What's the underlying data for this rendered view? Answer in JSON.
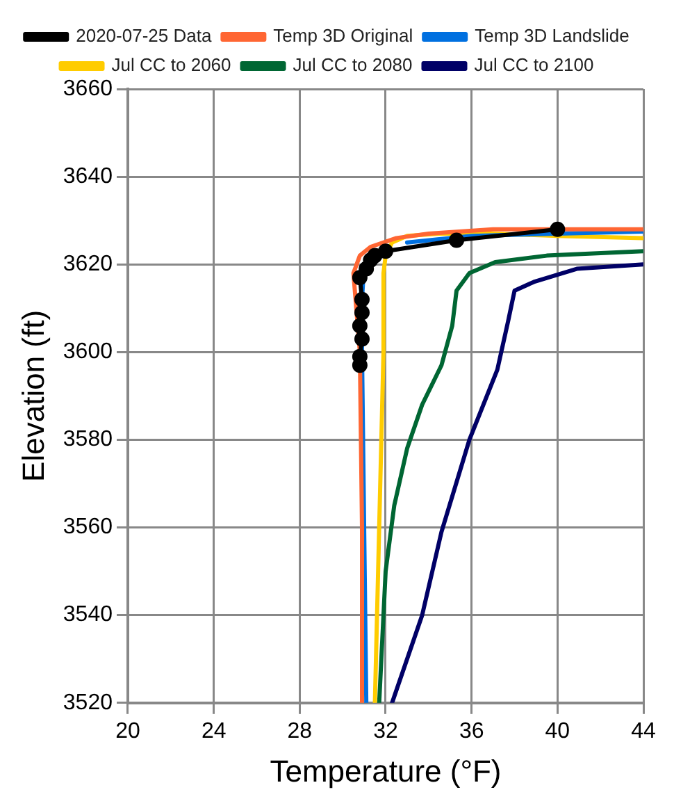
{
  "chart_data": {
    "type": "line",
    "xlabel": "Temperature (°F)",
    "ylabel": "Elevation (ft)",
    "xlim": [
      20,
      44
    ],
    "xticks": [
      20,
      24,
      28,
      32,
      36,
      40,
      44
    ],
    "ylim": [
      3520,
      3660
    ],
    "yticks": [
      3520,
      3540,
      3560,
      3580,
      3600,
      3620,
      3640,
      3660
    ],
    "grid": true,
    "legend": "top",
    "marker": "none",
    "line_style": "solid",
    "series": [
      {
        "name": "2020-07-25 Data",
        "color": "#000000",
        "marker": "circle",
        "x": [
          30.8,
          30.8,
          30.9,
          30.8,
          30.9,
          30.9,
          30.8,
          31.1,
          31.3,
          31.5,
          32,
          35.3,
          40
        ],
        "values": [
          3597,
          3599,
          3603,
          3606,
          3609,
          3612,
          3617,
          3619,
          3621,
          3622,
          3623,
          3625.5,
          3628
        ]
      },
      {
        "name": "Temp 3D Original",
        "color": "#ff6633",
        "x": [
          30.9,
          30.9,
          30.8,
          30.6,
          30.5,
          30.8,
          31.3,
          32.5,
          34,
          37,
          40,
          44
        ],
        "values": [
          3520,
          3560,
          3600,
          3612,
          3618,
          3622,
          3624,
          3626,
          3627,
          3628,
          3628,
          3628
        ]
      },
      {
        "name": "Temp 3D Landslide",
        "color": "#0070e0",
        "x": [
          31.1,
          31.0,
          30.9,
          30.9,
          31.0,
          31.5,
          33,
          36,
          40,
          44
        ],
        "values": [
          3520,
          3560,
          3600,
          3612,
          3620,
          null,
          3625,
          3626.5,
          3627,
          3627.5
        ]
      },
      {
        "name": "Jul CC to 2060",
        "color": "#ffcc00",
        "x": [
          31.5,
          31.7,
          31.9,
          31.9,
          32.0,
          32.3,
          33,
          34.5,
          37,
          40,
          44
        ],
        "values": [
          3520,
          3560,
          3600,
          3618,
          3622,
          3625,
          3626.5,
          3627,
          3627,
          3626.5,
          3626
        ]
      },
      {
        "name": "Jul CC to 2080",
        "color": "#006633",
        "x": [
          31.7,
          32.0,
          32.4,
          33.0,
          33.7,
          34.6,
          35.1,
          35.3,
          35.9,
          37.1,
          39.5,
          44
        ],
        "values": [
          3520,
          3550,
          3565,
          3578,
          3588,
          3597,
          3606,
          3614,
          3618,
          3620.5,
          3622,
          3623
        ]
      },
      {
        "name": "Jul CC to 2100",
        "color": "#000066",
        "x": [
          32.3,
          33.7,
          34.6,
          35.9,
          37.2,
          37.7,
          38.0,
          38.9,
          40.9,
          44
        ],
        "values": [
          3520,
          3540,
          3559,
          3580,
          3596,
          3607,
          3614,
          3616,
          3619,
          3620
        ]
      }
    ]
  }
}
